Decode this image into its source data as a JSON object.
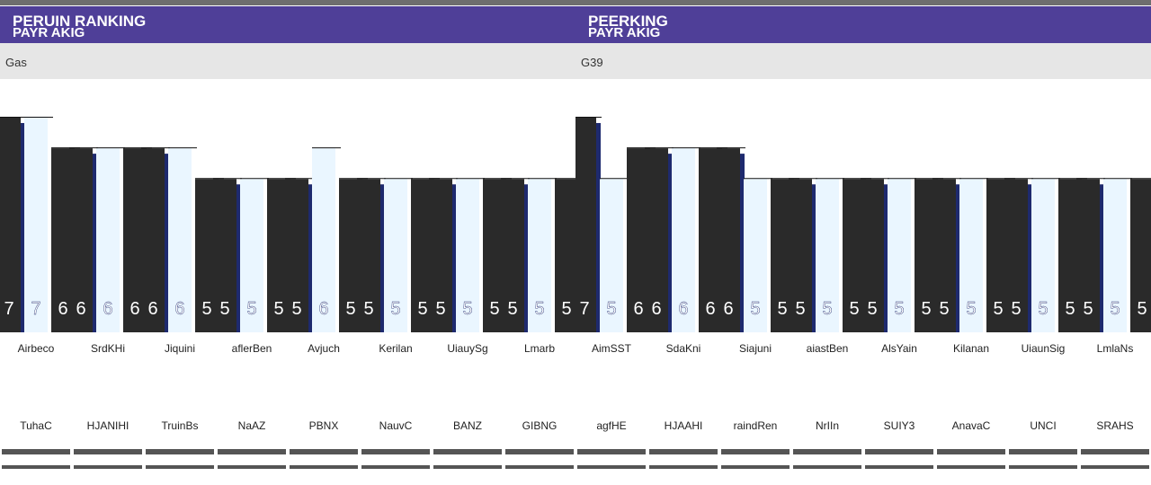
{
  "colors": {
    "header_bg": "#4f3f98",
    "subbar_bg": "#e6e6e6",
    "dark_bar": "#2a2a2a",
    "navy_bar": "#1e2a6e",
    "light_bar": "#eaf6ff",
    "strip": "#555555"
  },
  "left_panel": {
    "title": "PERUIN RANKING",
    "subtitle": "PAYR AKIG",
    "subbar_text": "Gas"
  },
  "right_panel": {
    "title": "PEERKING",
    "subtitle": "PAYR AKIG",
    "subbar_text": "G39"
  },
  "chart_data": [
    {
      "type": "bar",
      "title": "PERUIN RANKING",
      "ylim": [
        0,
        8.2
      ],
      "grid": false,
      "legend": "none",
      "categories": [
        "Airbeco",
        "SrdKHi",
        "Jiquini",
        "aflerBen",
        "Avjuch",
        "Kerilan",
        "UiauySg",
        "Lmarb"
      ],
      "codes": [
        "TuhaC",
        "HJANIHI",
        "TruinBs",
        "NaAZ",
        "PBNX",
        "NauvC",
        "BANZ",
        "GIBNG"
      ],
      "series": [
        {
          "values": [
            7,
            6,
            6,
            5,
            5,
            5,
            5,
            5
          ]
        },
        {
          "values": [
            7,
            6,
            6,
            5,
            6,
            5,
            5,
            5
          ]
        },
        {
          "values": [
            6,
            6,
            5,
            5,
            5,
            5,
            5,
            5
          ]
        }
      ]
    },
    {
      "type": "bar",
      "title": "PEERKING",
      "ylim": [
        0,
        8.2
      ],
      "grid": false,
      "legend": "none",
      "categories": [
        "AimSST",
        "SdaKni",
        "Siajuni",
        "aiastBen",
        "AlsYain",
        "Kilanan",
        "UiaunSig",
        "LmlaNs"
      ],
      "codes": [
        "agfHE",
        "HJAAHI",
        "raindRen",
        "NrIIn",
        "SUIY3",
        "AnavaC",
        "UNCI",
        "SRAHS"
      ],
      "series": [
        {
          "values": [
            7,
            6,
            6,
            5,
            5,
            5,
            5,
            5
          ]
        },
        {
          "values": [
            5,
            6,
            5,
            5,
            5,
            5,
            5,
            5
          ]
        },
        {
          "values": [
            6,
            6,
            5,
            5,
            5,
            5,
            5,
            5
          ]
        }
      ]
    }
  ]
}
